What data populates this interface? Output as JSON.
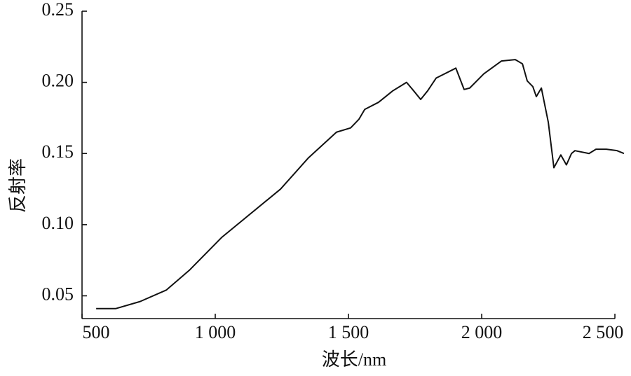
{
  "chart_data": {
    "type": "line",
    "x_label": "波长/nm",
    "y_label": "反射率",
    "xlim": [
      500,
      2542
    ],
    "ylim": [
      0.034,
      0.25
    ],
    "xticks": [
      500,
      {
        "value": 1000,
        "label": "1 000"
      },
      {
        "value": 1500,
        "label": "1 500"
      },
      {
        "value": 2000,
        "label": "2 000"
      },
      {
        "value": 2500,
        "label": "2 500"
      }
    ],
    "yticks": [
      0.05,
      {
        "value": 0.1,
        "label": "0.10"
      },
      0.15,
      {
        "value": 0.2,
        "label": "0.20"
      },
      0.25
    ],
    "series": [
      {
        "color": "#111111",
        "x": [
          553,
          626,
          718,
          816,
          903,
          1024,
          1245,
          1350,
          1455,
          1508,
          1539,
          1561,
          1613,
          1666,
          1718,
          1745,
          1771,
          1797,
          1829,
          1903,
          1934,
          1955,
          2008,
          2074,
          2126,
          2153,
          2171,
          2192,
          2205,
          2224,
          2250,
          2271,
          2297,
          2318,
          2337,
          2350,
          2403,
          2429,
          2468,
          2508,
          2534
        ],
        "values": [
          0.041,
          0.041,
          0.046,
          0.054,
          0.068,
          0.091,
          0.125,
          0.147,
          0.165,
          0.168,
          0.174,
          0.181,
          0.186,
          0.194,
          0.2,
          0.194,
          0.188,
          0.194,
          0.203,
          0.21,
          0.195,
          0.196,
          0.206,
          0.215,
          0.216,
          0.213,
          0.201,
          0.197,
          0.19,
          0.196,
          0.172,
          0.14,
          0.149,
          0.142,
          0.15,
          0.152,
          0.15,
          0.153,
          0.153,
          0.152,
          0.15
        ]
      }
    ]
  }
}
